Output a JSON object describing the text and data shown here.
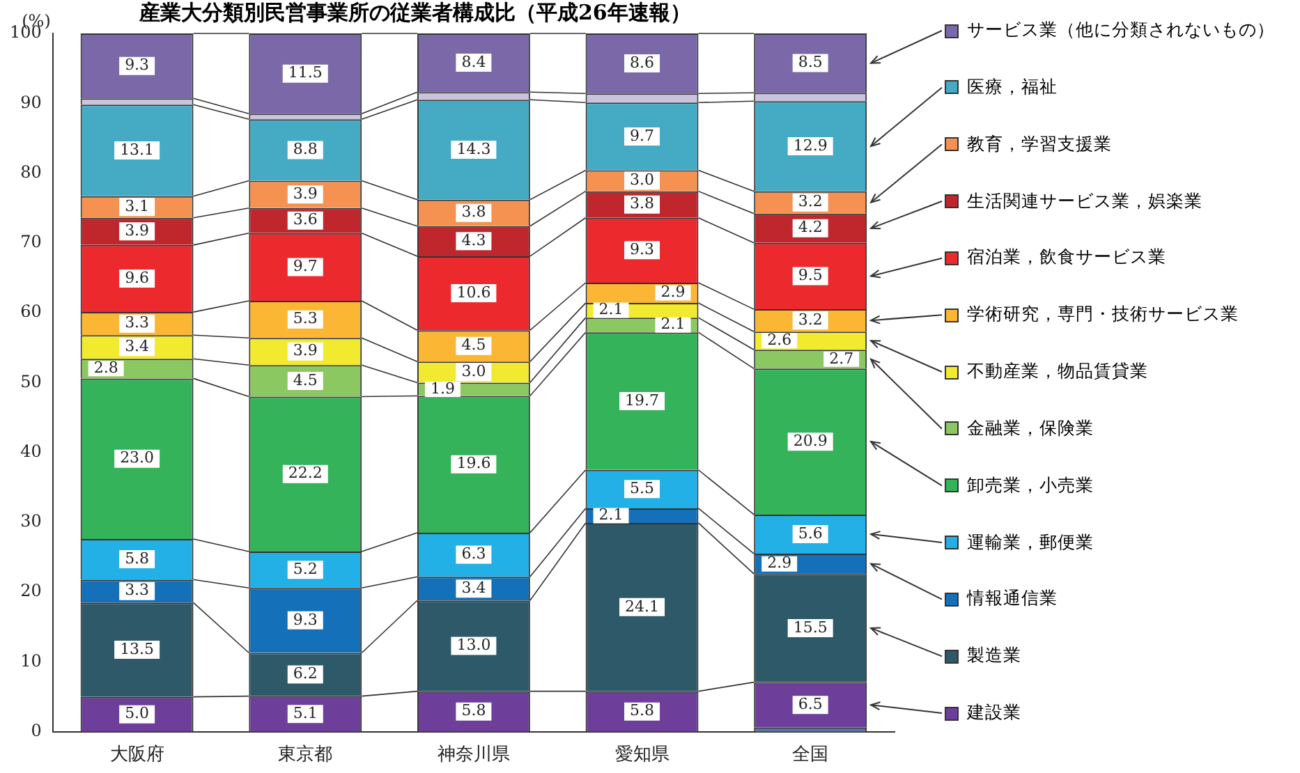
{
  "chart_data": {
    "type": "bar",
    "title": "産業大分類別民営事業所の従業者構成比（平成26年速報）",
    "ylabel": "(%)",
    "categories": [
      "大阪府",
      "東京都",
      "神奈川県",
      "愛知県",
      "全国"
    ],
    "stacked": true,
    "ylim": [
      0,
      100
    ],
    "yticks": [
      0,
      10,
      20,
      30,
      40,
      50,
      60,
      70,
      80,
      90,
      100
    ],
    "grid": false,
    "legend": "right",
    "series": [
      {
        "color": "#5577aa",
        "values": [
          0,
          0,
          0,
          0,
          0.6
        ],
        "value_labels": [
          null,
          null,
          null,
          null,
          null
        ]
      },
      {
        "name": "建設業",
        "color": "#6e3f9a",
        "values": [
          5.0,
          5.1,
          5.8,
          5.8,
          6.5
        ],
        "value_labels": [
          "5.0",
          "5.1",
          "5.8",
          "5.8",
          "6.5"
        ]
      },
      {
        "name": "製造業",
        "color": "#2e5968",
        "values": [
          13.5,
          6.2,
          13.0,
          24.1,
          15.5
        ],
        "value_labels": [
          "13.5",
          "6.2",
          "13.0",
          "24.1",
          "15.5"
        ]
      },
      {
        "name": "情報通信業",
        "color": "#1470b8",
        "values": [
          3.3,
          9.3,
          3.4,
          2.1,
          2.9
        ],
        "value_labels": [
          "3.3",
          "9.3",
          "3.4",
          "2.1",
          "2.9"
        ]
      },
      {
        "name": "運輸業，郵便業",
        "color": "#22b0e6",
        "values": [
          5.8,
          5.2,
          6.3,
          5.5,
          5.6
        ],
        "value_labels": [
          "5.8",
          "5.2",
          "6.3",
          "5.5",
          "5.6"
        ]
      },
      {
        "name": "卸売業，小売業",
        "color": "#34b35a",
        "values": [
          23.0,
          22.2,
          19.6,
          19.7,
          20.9
        ],
        "value_labels": [
          "23.0",
          "22.2",
          "19.6",
          "19.7",
          "20.9"
        ]
      },
      {
        "name": "金融業，保険業",
        "color": "#8cc862",
        "values": [
          2.8,
          4.5,
          1.9,
          2.1,
          2.7
        ],
        "value_labels": [
          "2.8",
          "4.5",
          "1.9",
          "2.1",
          "2.7"
        ]
      },
      {
        "name": "不動産業，物品賃貸業",
        "color": "#f2ea2e",
        "values": [
          3.4,
          3.9,
          3.0,
          2.1,
          2.6
        ],
        "value_labels": [
          "3.4",
          "3.9",
          "3.0",
          "2.1",
          "2.6"
        ]
      },
      {
        "name": "学術研究，専門・技術サービス業",
        "color": "#fbb634",
        "values": [
          3.3,
          5.3,
          4.5,
          2.9,
          3.2
        ],
        "value_labels": [
          "3.3",
          "5.3",
          "4.5",
          "2.9",
          "3.2"
        ]
      },
      {
        "name": "宿泊業，飲食サービス業",
        "color": "#ec2a2e",
        "values": [
          9.6,
          9.7,
          10.6,
          9.3,
          9.5
        ],
        "value_labels": [
          "9.6",
          "9.7",
          "10.6",
          "9.3",
          "9.5"
        ]
      },
      {
        "name": "生活関連サービス業，娯楽業",
        "color": "#c0272d",
        "values": [
          3.9,
          3.6,
          4.3,
          3.8,
          4.2
        ],
        "value_labels": [
          "3.9",
          "3.6",
          "4.3",
          "3.8",
          "4.2"
        ]
      },
      {
        "name": "教育，学習支援業",
        "color": "#f59251",
        "values": [
          3.1,
          3.9,
          3.8,
          3.0,
          3.2
        ],
        "value_labels": [
          "3.1",
          "3.9",
          "3.8",
          "3.0",
          "3.2"
        ]
      },
      {
        "name": "医療，福祉",
        "color": "#45abc5",
        "values": [
          13.1,
          8.8,
          14.3,
          9.7,
          12.9
        ],
        "value_labels": [
          "13.1",
          "8.8",
          "14.3",
          "9.7",
          "12.9"
        ]
      },
      {
        "color": "#c9c3dd",
        "values": [
          0.9,
          0.8,
          1.1,
          1.3,
          1.2
        ],
        "value_labels": [
          null,
          null,
          null,
          null,
          null
        ]
      },
      {
        "name": "サービス業（他に分類されないもの）",
        "color": "#7b68a8",
        "values": [
          9.3,
          11.5,
          8.4,
          8.6,
          8.5
        ],
        "value_labels": [
          "9.3",
          "11.5",
          "8.4",
          "8.6",
          "8.5"
        ]
      }
    ]
  }
}
